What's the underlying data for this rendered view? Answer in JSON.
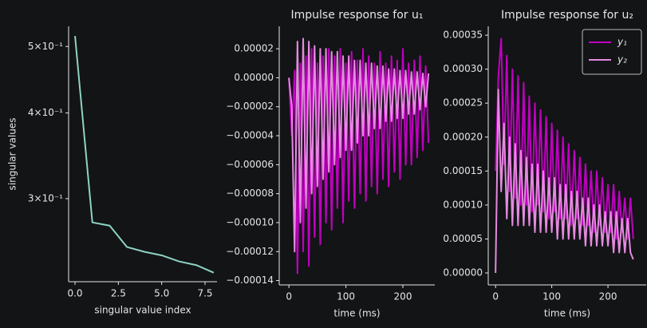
{
  "chart_data": [
    {
      "type": "line",
      "xlabel": "singular value index",
      "ylabel": "singular values",
      "log_y": true,
      "x": [
        0,
        1,
        2,
        3,
        4,
        5,
        6,
        7,
        8
      ],
      "series": [
        {
          "color": "#8fd3c4",
          "values": [
            0.518,
            0.277,
            0.274,
            0.255,
            0.251,
            0.248,
            0.243,
            0.24,
            0.234
          ]
        }
      ],
      "xlim": [
        -0.37,
        8.19
      ],
      "xticks": [
        {
          "value": 0,
          "label": "0.0"
        },
        2.5,
        {
          "value": 5,
          "label": "5.0"
        },
        7.5
      ],
      "ylim": [
        0.227,
        0.535
      ],
      "yticks": [
        {
          "value": 0.3,
          "label": "3×10⁻¹"
        },
        {
          "value": 0.4,
          "label": "4×10⁻¹"
        },
        {
          "value": 0.5,
          "label": "5×10⁻¹"
        }
      ]
    },
    {
      "type": "line",
      "title": "Impulse response for u₁",
      "xlabel": "time (ms)",
      "x": [
        0,
        5,
        10,
        15,
        20,
        25,
        30,
        35,
        40,
        45,
        50,
        55,
        60,
        65,
        70,
        75,
        80,
        85,
        90,
        95,
        100,
        105,
        110,
        115,
        120,
        125,
        130,
        135,
        140,
        145,
        150,
        155,
        160,
        165,
        170,
        175,
        180,
        185,
        190,
        195,
        200,
        205,
        210,
        215,
        220,
        225,
        230,
        235,
        240,
        245
      ],
      "series": [
        {
          "color": "#c000c0",
          "values": [
            0,
            -4e-05,
            5e-06,
            -0.000135,
            1e-05,
            -0.00012,
            1.5e-05,
            -0.00013,
            2e-05,
            -0.00011,
            1e-05,
            -0.000115,
            1.5e-05,
            -0.0001,
            2e-05,
            -0.000105,
            1.5e-05,
            -9e-05,
            2e-05,
            -0.0001,
            1e-05,
            -8.5e-05,
            1.8e-05,
            -9e-05,
            1.2e-05,
            -8e-05,
            2e-05,
            -8.5e-05,
            1.5e-05,
            -7.5e-05,
            1e-05,
            -8e-05,
            1.8e-05,
            -7e-05,
            1e-05,
            -7.5e-05,
            1.5e-05,
            -6.5e-05,
            1.2e-05,
            -7e-05,
            2e-05,
            -6e-05,
            1e-05,
            -6e-05,
            1.2e-05,
            -5.5e-05,
            1.5e-05,
            -5e-05,
            8e-06,
            -4.5e-05
          ]
        },
        {
          "color": "#e58ae0",
          "values": [
            0,
            -2e-05,
            -0.00012,
            2.5e-05,
            -0.0001,
            2.7e-05,
            -9e-05,
            2.5e-05,
            -8e-05,
            2.2e-05,
            -7.5e-05,
            2e-05,
            -7e-05,
            2e-05,
            -6.5e-05,
            1.8e-05,
            -6e-05,
            1.8e-05,
            -5.5e-05,
            1.5e-05,
            -5e-05,
            1.5e-05,
            -5e-05,
            1.2e-05,
            -4.5e-05,
            1.2e-05,
            -4e-05,
            1e-05,
            -4e-05,
            1e-05,
            -3.5e-05,
            8e-06,
            -3.5e-05,
            8e-06,
            -3e-05,
            6e-06,
            -3e-05,
            6e-06,
            -2.8e-05,
            5e-06,
            -2.8e-05,
            5e-06,
            -2.5e-05,
            4e-06,
            -2.5e-05,
            4e-06,
            -2.2e-05,
            3e-06,
            -2e-05,
            3e-06
          ]
        }
      ],
      "xlim": [
        -17,
        256
      ],
      "xticks": [
        0,
        100,
        200
      ],
      "ylim": [
        -0.000143,
        3.55e-05
      ],
      "yticks": [
        {
          "value": -0.00014,
          "label": "−0.00014"
        },
        {
          "value": -0.00012,
          "label": "−0.00012"
        },
        {
          "value": -0.0001,
          "label": "−0.00010"
        },
        {
          "value": -8e-05,
          "label": "−0.00008"
        },
        {
          "value": -6e-05,
          "label": "−0.00006"
        },
        {
          "value": -4e-05,
          "label": "−0.00004"
        },
        {
          "value": -2e-05,
          "label": "−0.00002"
        },
        {
          "value": 0,
          "label": "0.00000"
        },
        {
          "value": 2e-05,
          "label": "0.00002"
        }
      ]
    },
    {
      "type": "line",
      "title": "Impulse response for u₂",
      "xlabel": "time (ms)",
      "legend": "upper right",
      "x": [
        0,
        5,
        10,
        15,
        20,
        25,
        30,
        35,
        40,
        45,
        50,
        55,
        60,
        65,
        70,
        75,
        80,
        85,
        90,
        95,
        100,
        105,
        110,
        115,
        120,
        125,
        130,
        135,
        140,
        145,
        150,
        155,
        160,
        165,
        170,
        175,
        180,
        185,
        190,
        195,
        200,
        205,
        210,
        215,
        220,
        225,
        230,
        235,
        240,
        245
      ],
      "series": [
        {
          "name": "y₁",
          "color": "#c000c0",
          "values": [
            0.00015,
            0.00029,
            0.000345,
            0.00016,
            0.00032,
            0.00012,
            0.0003,
            0.00011,
            0.00029,
            0.0001,
            0.00028,
            0.0001,
            0.00026,
            9e-05,
            0.00025,
            0.0001,
            0.00024,
            9e-05,
            0.00023,
            8e-05,
            0.00022,
            9e-05,
            0.00021,
            8e-05,
            0.0002,
            8e-05,
            0.00019,
            7e-05,
            0.00018,
            8e-05,
            0.00017,
            7e-05,
            0.00016,
            7e-05,
            0.00015,
            6e-05,
            0.00015,
            7e-05,
            0.00014,
            6e-05,
            0.00013,
            6e-05,
            0.00013,
            5e-05,
            0.00012,
            6e-05,
            0.00011,
            5e-05,
            0.00011,
            5e-05
          ]
        },
        {
          "name": "y₂",
          "color": "#e58ae0",
          "values": [
            0,
            0.00027,
            0.00012,
            0.00022,
            8e-05,
            0.0002,
            7e-05,
            0.00019,
            7e-05,
            0.00018,
            7e-05,
            0.00017,
            7e-05,
            0.00016,
            6e-05,
            0.00016,
            6e-05,
            0.00015,
            6e-05,
            0.00014,
            6e-05,
            0.00014,
            5e-05,
            0.00013,
            5e-05,
            0.00013,
            5e-05,
            0.00012,
            5e-05,
            0.00012,
            5e-05,
            0.00011,
            4e-05,
            0.00011,
            4e-05,
            0.0001,
            4e-05,
            0.0001,
            4e-05,
            9e-05,
            4e-05,
            9e-05,
            3e-05,
            9e-05,
            3e-05,
            8e-05,
            3e-05,
            8e-05,
            3e-05,
            2e-05
          ]
        }
      ],
      "xlim": [
        -13,
        268
      ],
      "xticks": [
        0,
        100,
        200
      ],
      "ylim": [
        -1.76e-05,
        0.000363
      ],
      "yticks": [
        {
          "value": 0,
          "label": "0.00000"
        },
        {
          "value": 5e-05,
          "label": "0.00005"
        },
        {
          "value": 0.0001,
          "label": "0.00010"
        },
        {
          "value": 0.00015,
          "label": "0.00015"
        },
        {
          "value": 0.0002,
          "label": "0.00020"
        },
        {
          "value": 0.00025,
          "label": "0.00025"
        },
        {
          "value": 0.0003,
          "label": "0.00030"
        },
        {
          "value": 0.00035,
          "label": "0.00035"
        }
      ]
    }
  ]
}
